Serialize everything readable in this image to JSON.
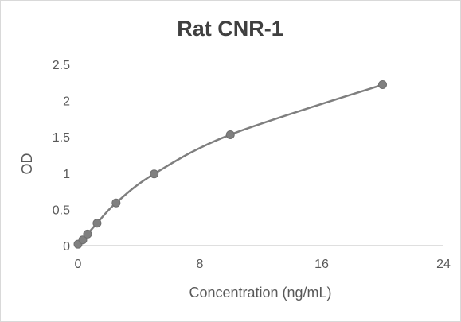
{
  "chart_data": {
    "type": "scatter",
    "title": "Rat CNR-1",
    "xlabel": "Concentration (ng/mL)",
    "ylabel": "OD",
    "xlim": [
      0,
      24
    ],
    "ylim": [
      0,
      2.5
    ],
    "x_ticks": [
      "0",
      "8",
      "16",
      "24"
    ],
    "y_ticks": [
      "0",
      "0.5",
      "1",
      "1.5",
      "2",
      "2.5"
    ],
    "grid": false,
    "legend": "none",
    "smooth_line": true,
    "series": [
      {
        "x": [
          0,
          0.3125,
          0.625,
          1.25,
          2.5,
          5,
          10,
          20
        ],
        "y": [
          0.02,
          0.08,
          0.16,
          0.31,
          0.59,
          0.99,
          1.53,
          2.22
        ]
      }
    ],
    "colors": {
      "line": "#7f7f7f",
      "marker_fill": "#808080",
      "marker_stroke": "#6e6e6e",
      "axis": "#bfbfbf",
      "title": "#404040",
      "text": "#595959"
    }
  }
}
